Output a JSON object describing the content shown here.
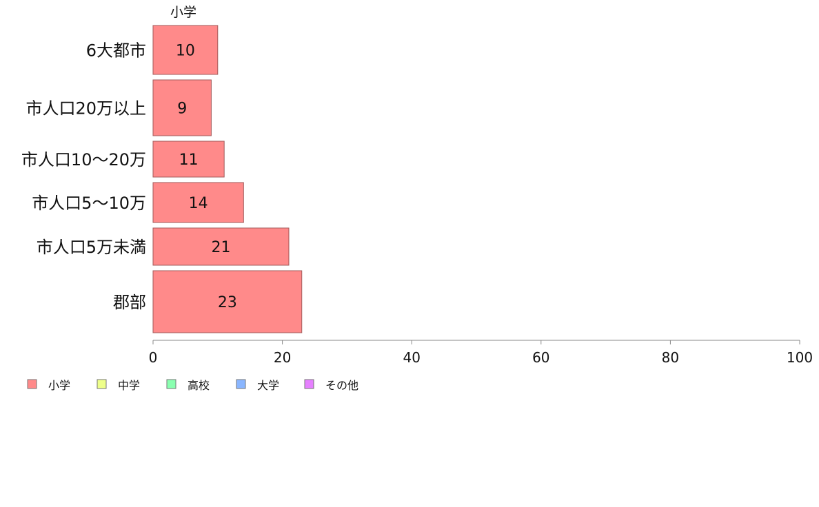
{
  "chart_data": {
    "type": "bar",
    "orientation": "horizontal",
    "categories": [
      "6大都市",
      "市人口20万以上",
      "市人口10～20万",
      "市人口5～10万",
      "市人口5万未満",
      "郡部"
    ],
    "series": [
      {
        "name": "小学",
        "values": [
          10,
          9,
          11,
          14,
          21,
          23
        ],
        "color": "#ff8a8a"
      }
    ],
    "column_header": "小学",
    "x_ticks": [
      "0",
      "20",
      "40",
      "60",
      "80",
      "100"
    ],
    "xlim": [
      0,
      100
    ],
    "legend": [
      {
        "label": "小学",
        "color": "#ff8a8a"
      },
      {
        "label": "中学",
        "color": "#eeff8a"
      },
      {
        "label": "高校",
        "color": "#8affb0"
      },
      {
        "label": "大学",
        "color": "#8ab6ff"
      },
      {
        "label": "その他",
        "color": "#e680ff"
      }
    ],
    "legend_position": "bottom-left",
    "grid": false
  }
}
